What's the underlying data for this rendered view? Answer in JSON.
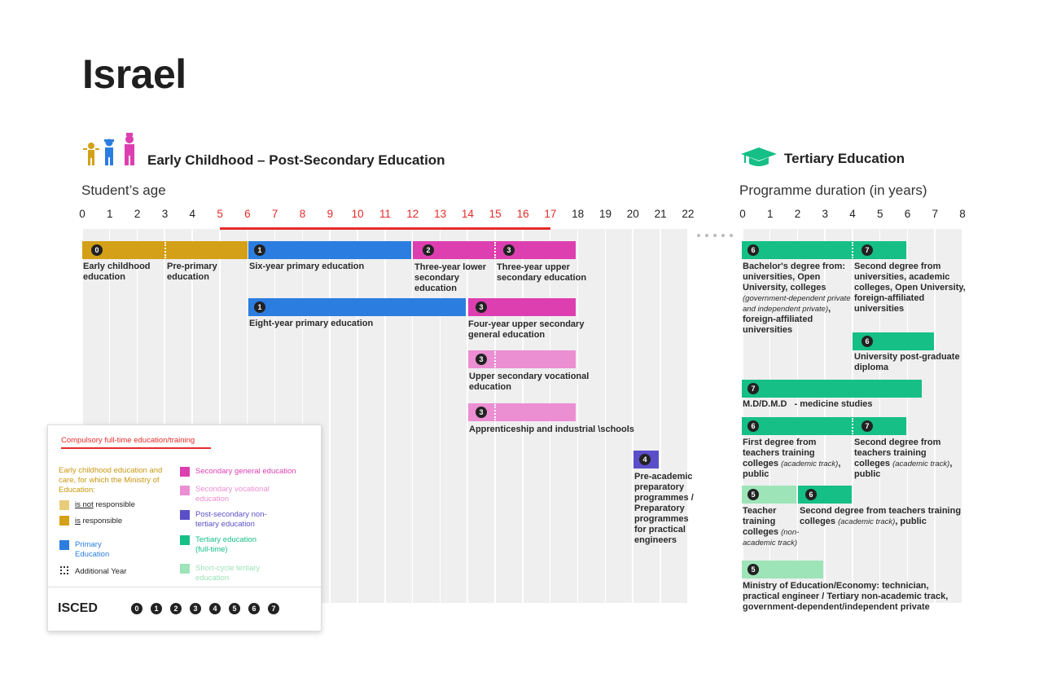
{
  "title": "Israel",
  "left_section": {
    "title": "Early Childhood – Post-Secondary Education",
    "axis_title": "Student’s age",
    "ticks": [
      "0",
      "1",
      "2",
      "3",
      "4",
      "5",
      "6",
      "7",
      "8",
      "9",
      "10",
      "11",
      "12",
      "13",
      "14",
      "15",
      "16",
      "17",
      "18",
      "19",
      "20",
      "21",
      "22"
    ]
  },
  "right_section": {
    "title": "Tertiary Education",
    "axis_title": "Programme duration (in years)",
    "ticks": [
      "0",
      "1",
      "2",
      "3",
      "4",
      "5",
      "6",
      "7",
      "8"
    ]
  },
  "colors": {
    "ec_responsible": "#d4a017",
    "ec_not_responsible": "#e8cc7a",
    "primary": "#2b7de0",
    "sec_general": "#dd3fb0",
    "sec_vocational": "#ec8ed2",
    "post_sec": "#5b4fc9",
    "tertiary": "#15bf85",
    "short_cycle": "#9ee4b9",
    "compulsory": "#e52b2b"
  },
  "left_labels": {
    "ec": "Early childhood education",
    "pre": "Pre-primary education",
    "six": "Six-year primary education",
    "lower3": "Three-year lower secondary education",
    "upper3": "Three-year upper secondary education",
    "eight": "Eight-year primary education",
    "four": "Four-year upper secondary general education",
    "voc": "Upper secondary vocational education",
    "appr": "Apprenticeship and industrial \\schools",
    "preacad": "Pre-academic preparatory programmes / Preparatory programmes for practical engineers"
  },
  "right_labels": {
    "bach_a": "Bachelor's degree from: universities, Open University, colleges",
    "bach_i": "(government-dependent private and independent private)",
    "bach_b": ", foreign-affiliated universities",
    "second": "Second degree from universities, academic colleges, Open University, foreign-affiliated universities",
    "postgrad": "University post-graduate diploma",
    "md": "M.D/D.M.D   - medicine studies",
    "first_a": "First degree from teachers training colleges",
    "first_i": "(academic track)",
    "first_b": ", public",
    "second_t_a": "Second degree from teachers training colleges",
    "second_t_i": "(academic track)",
    "second_t_b": ", public",
    "teacher_a": "Teacher training colleges",
    "teacher_i": "(non- academic track)",
    "second_tt_a": "Second degree from teachers training colleges",
    "second_tt_i": "(academic track)",
    "second_tt_b": ", public",
    "ministry": "Ministry of Education/Economy: technician, practical engineer / Tertiary non-academic track, government-dependent/independent private"
  },
  "legend": {
    "compulsory": "Compulsory full-time education/training",
    "ec_title": "Early childhood education and care, for which the Ministry of Education:",
    "ec_not_prefix": "is not",
    "ec_not_suffix": " responsible",
    "ec_is_prefix": "is",
    "ec_is_suffix": " responsible",
    "primary": "Primary Education",
    "additional": "Additional Year",
    "sec_general": "Secondary general education",
    "sec_vocational": "Secondary vocational education",
    "post_sec": "Post-secondary non-tertiary education",
    "tertiary": "Tertiary education (full-time)",
    "short_cycle": "Short-cycle tertiary education",
    "isced": "ISCED",
    "isced_levels": [
      "0",
      "1",
      "2",
      "3",
      "4",
      "5",
      "6",
      "7"
    ]
  }
}
